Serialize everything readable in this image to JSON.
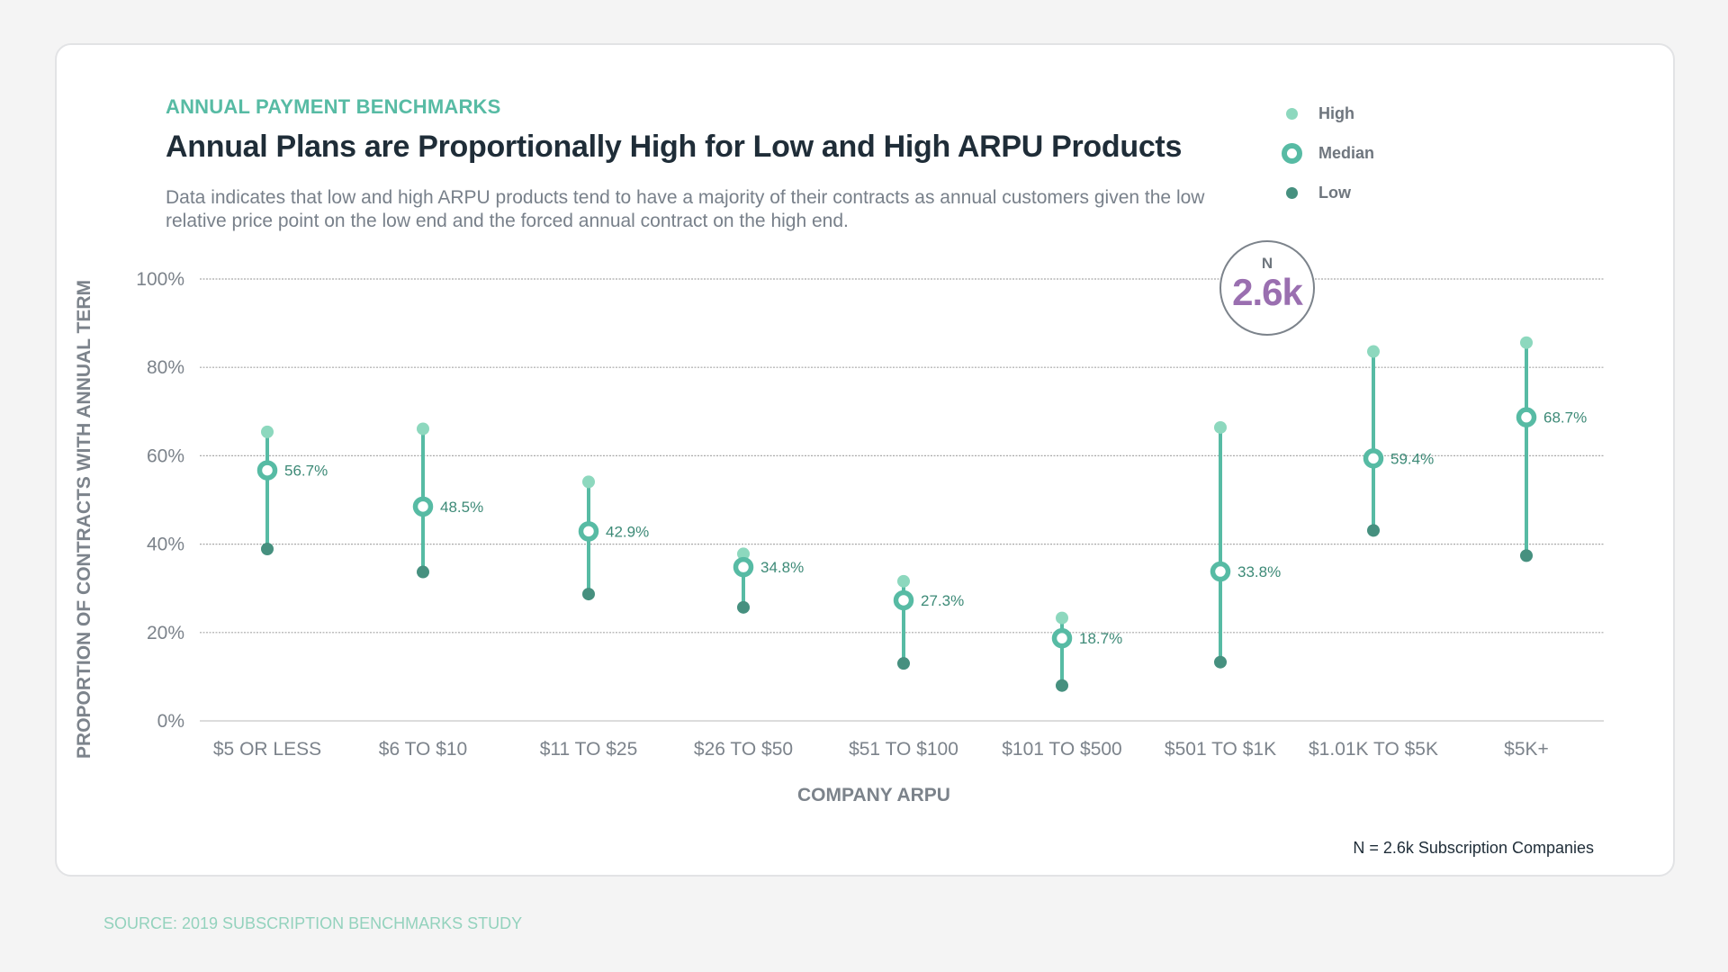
{
  "header": {
    "kicker": "ANNUAL PAYMENT BENCHMARKS",
    "title": "Annual Plans are Proportionally High for Low and High ARPU Products",
    "subtitle": "Data indicates that low and high ARPU products tend to have a majority of their contracts as annual customers given the low relative price point on the low end and the forced annual contract on the high end."
  },
  "legend": {
    "items": [
      {
        "label": "High",
        "marker": "high-dot"
      },
      {
        "label": "Median",
        "marker": "median-ring"
      },
      {
        "label": "Low",
        "marker": "low-dot"
      }
    ]
  },
  "badge": {
    "label": "N",
    "value": "2.6k"
  },
  "footnote": "N = 2.6k Subscription Companies",
  "source": "SOURCE: 2019 SUBSCRIPTION BENCHMARKS STUDY",
  "colors": {
    "high": "#8dd8be",
    "median": "#57bba4",
    "low": "#46907f",
    "accent": "#57bba4",
    "badge_value": "#9a6fb0",
    "value_label": "#3d8a77"
  },
  "chart_data": {
    "type": "scatter",
    "subtype": "range-dot (high / median / low)",
    "title": "Annual Plans are Proportionally High for Low and High ARPU Products",
    "xlabel": "COMPANY ARPU",
    "ylabel": "PROPORTION OF CONTRACTS WITH ANNUAL TERM",
    "ylim": [
      0,
      100
    ],
    "yticks": [
      "0%",
      "20%",
      "40%",
      "60%",
      "80%",
      "100%"
    ],
    "ytick_values": [
      0,
      20,
      40,
      60,
      80,
      100
    ],
    "grid": true,
    "legend_position": "top-right",
    "categories": [
      "$5 OR LESS",
      "$6 TO $10",
      "$11 TO $25",
      "$26 TO $50",
      "$51 TO $100",
      "$101 TO $500",
      "$501 TO $1K",
      "$1.01K TO $5K",
      "$5K+"
    ],
    "series": [
      {
        "name": "High",
        "values": [
          65.4,
          66.1,
          54.1,
          37.8,
          31.6,
          23.3,
          66.4,
          83.6,
          85.6
        ]
      },
      {
        "name": "Median",
        "values": [
          56.7,
          48.5,
          42.9,
          34.8,
          27.3,
          18.7,
          33.8,
          59.4,
          68.7
        ]
      },
      {
        "name": "Low",
        "values": [
          38.9,
          33.7,
          28.7,
          25.7,
          13.0,
          8.0,
          13.3,
          43.1,
          37.4
        ]
      }
    ],
    "median_labels": [
      "56.7%",
      "48.5%",
      "42.9%",
      "34.8%",
      "27.3%",
      "18.7%",
      "33.8%",
      "59.4%",
      "68.7%"
    ],
    "annotation": {
      "label": "N",
      "value": "2.6k"
    }
  }
}
